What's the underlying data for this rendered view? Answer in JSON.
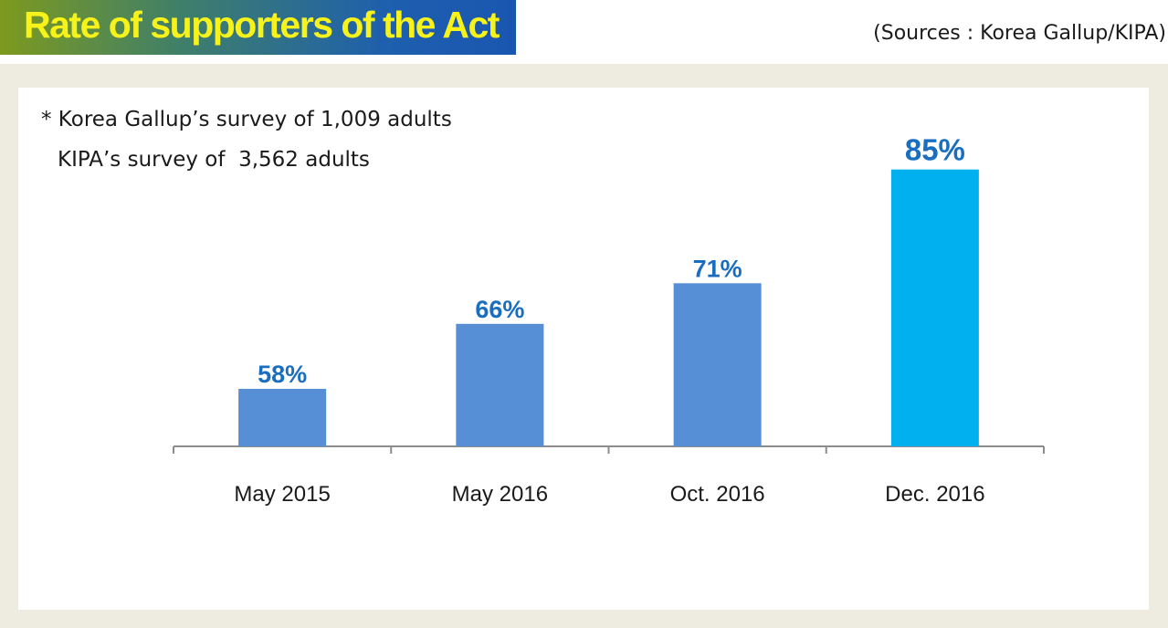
{
  "header": {
    "title": "Rate of supporters of the Act",
    "sources": "(Sources : Korea Gallup/KIPA)"
  },
  "notes": {
    "line1": "* Korea Gallup’s survey of 1,009 adults",
    "line2": "KIPA’s survey of  3,562 adults"
  },
  "colors": {
    "bar": "#568fd6",
    "bar_highlight": "#00b0ef",
    "label": "#1a6ec0",
    "title_text": "#f7f21a"
  },
  "chart_data": {
    "type": "bar",
    "categories": [
      "May 2015",
      "May 2016",
      "Oct. 2016",
      "Dec. 2016"
    ],
    "values": [
      58,
      66,
      71,
      85
    ],
    "value_labels": [
      "58%",
      "66%",
      "71%",
      "85%"
    ],
    "highlight_index": 3,
    "title": "Rate of supporters of the Act",
    "xlabel": "",
    "ylabel": "",
    "grid": false,
    "legend": "none"
  }
}
